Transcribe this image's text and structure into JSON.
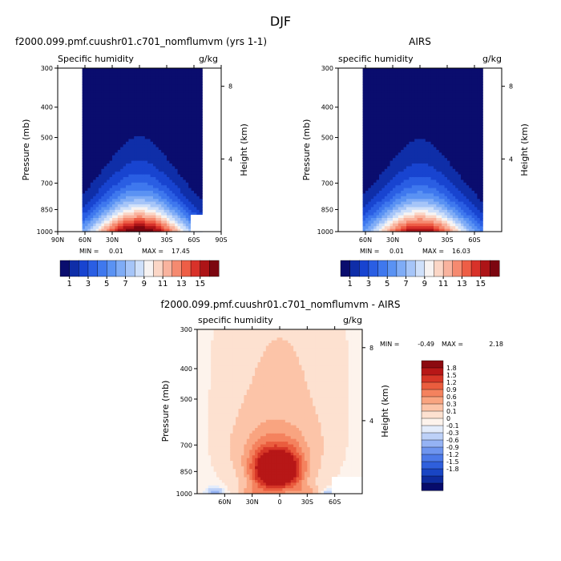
{
  "figure_title": "DJF",
  "colors": {
    "model_obs_scale": [
      "#0a0d6e",
      "#0f2ea8",
      "#1844d0",
      "#2a5ee3",
      "#3f78ee",
      "#5a92f3",
      "#7facf6",
      "#a6c5f8",
      "#cfe0fa",
      "#f7f3f2",
      "#fbd6c6",
      "#f9b39e",
      "#f58a70",
      "#ee5e46",
      "#d8322a",
      "#ad1417",
      "#7c0610"
    ],
    "diff_scale": [
      "#070b6b",
      "#0e2b9e",
      "#1945c4",
      "#2f5fdc",
      "#4c79e8",
      "#6e95ef",
      "#95b3f4",
      "#bdd1f8",
      "#e3ecfb",
      "#fdf3ec",
      "#fde1d0",
      "#fcc4a8",
      "#f9a480",
      "#f4825e",
      "#ea5d3e",
      "#d63627",
      "#b71717",
      "#8c0a10"
    ]
  },
  "chart_data": [
    {
      "type": "heatmap",
      "title": "f2000.099.pmf.cuushr01.c701_nomflumvm (yrs 1-1)",
      "field_label": "Specific humidity",
      "units": "g/kg",
      "ylabel": "Pressure (mb)",
      "ylabel_right": "Height (km)",
      "y_ticks": [
        "300",
        "400",
        "500",
        "700",
        "850",
        "1000"
      ],
      "y_tick_values": [
        300,
        400,
        500,
        700,
        850,
        1000
      ],
      "right_ticks": [
        "8",
        "4"
      ],
      "right_tick_values": [
        8,
        4
      ],
      "x_ticks": [
        "90N",
        "60N",
        "30N",
        "0",
        "30S",
        "60S",
        "90S"
      ],
      "x_tick_values": [
        90,
        60,
        30,
        0,
        -30,
        -60,
        -90
      ],
      "xlim": [
        90,
        -90
      ],
      "ylim": [
        300,
        1000
      ],
      "min_label": "MIN =",
      "min_value": "0.01",
      "max_label": "MAX =",
      "max_value": "17.45",
      "peak": 17.45,
      "colorbar_labels": [
        "1",
        "3",
        "5",
        "7",
        "9",
        "11",
        "13",
        "15"
      ]
    },
    {
      "type": "heatmap",
      "title": "AIRS",
      "field_label": "specific humidity",
      "units": "g/kg",
      "ylabel": "Pressure (mb)",
      "ylabel_right": "Height (km)",
      "y_ticks": [
        "300",
        "400",
        "500",
        "700",
        "850",
        "1000"
      ],
      "y_tick_values": [
        300,
        400,
        500,
        700,
        850,
        1000
      ],
      "right_ticks": [
        "8",
        "4"
      ],
      "right_tick_values": [
        8,
        4
      ],
      "x_ticks": [
        "60N",
        "30N",
        "0",
        "30S",
        "60S"
      ],
      "x_tick_values": [
        60,
        30,
        0,
        -30,
        -60
      ],
      "xlim": [
        90,
        -90
      ],
      "ylim": [
        300,
        1000
      ],
      "min_label": "MIN =",
      "min_value": "0.01",
      "max_label": "MAX =",
      "max_value": "16.03",
      "peak": 16.03,
      "colorbar_labels": [
        "1",
        "3",
        "5",
        "7",
        "9",
        "11",
        "13",
        "15"
      ]
    },
    {
      "type": "heatmap",
      "title": "f2000.099.pmf.cuushr01.c701_nomflumvm - AIRS",
      "field_label": "specific humidity",
      "units": "g/kg",
      "ylabel": "Pressure (mb)",
      "ylabel_right": "Height (km)",
      "y_ticks": [
        "300",
        "400",
        "500",
        "700",
        "850",
        "1000"
      ],
      "y_tick_values": [
        300,
        400,
        500,
        700,
        850,
        1000
      ],
      "right_ticks": [
        "8",
        "4"
      ],
      "right_tick_values": [
        8,
        4
      ],
      "x_ticks": [
        "60N",
        "30N",
        "0",
        "30S",
        "60S"
      ],
      "x_tick_values": [
        60,
        30,
        0,
        -30,
        -60
      ],
      "xlim": [
        90,
        -90
      ],
      "ylim": [
        300,
        1000
      ],
      "min_label": "MIN =",
      "min_value": "-0.49",
      "max_label": "MAX =",
      "max_value": "2.18",
      "colorbar_labels": [
        "1.8",
        "1.5",
        "1.2",
        "0.9",
        "0.6",
        "0.3",
        "0.1",
        "0",
        "-0.1",
        "-0.3",
        "-0.6",
        "-0.9",
        "-1.2",
        "-1.5",
        "-1.8"
      ]
    }
  ]
}
